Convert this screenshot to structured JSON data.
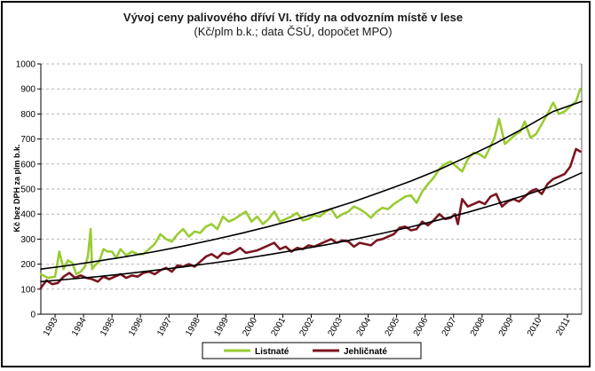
{
  "chart_data": {
    "type": "line",
    "title": "Vývoj ceny palivového dříví VI. třídy na odvozním místě v lese",
    "subtitle": "(Kč/plm b.k.; data ČSÚ, dopočet MPO)",
    "ylabel": "Kč bez DPH za plm b.k.",
    "xlabel": "",
    "ylim": [
      0,
      1000
    ],
    "xlim": [
      1992.5,
      2011.5
    ],
    "yticks": [
      "0",
      "100",
      "200",
      "300",
      "400",
      "500",
      "600",
      "700",
      "800",
      "900",
      "1000"
    ],
    "xticks": [
      "1993",
      "1994",
      "1995",
      "1996",
      "1997",
      "1998",
      "1999",
      "2000",
      "2001",
      "2002",
      "2003",
      "2004",
      "2005",
      "2006",
      "2007",
      "2008",
      "2009",
      "2010",
      "2011"
    ],
    "grid": "horizontal dashed",
    "legend": "bottom",
    "series": [
      {
        "name": "Listnaté",
        "color": "#99cc33",
        "x": [
          1992.5,
          1992.75,
          1993.0,
          1993.15,
          1993.3,
          1993.45,
          1993.6,
          1993.75,
          1993.9,
          1994.05,
          1994.15,
          1994.25,
          1994.3,
          1994.4,
          1994.55,
          1994.7,
          1994.85,
          1995.0,
          1995.15,
          1995.3,
          1995.5,
          1995.7,
          1995.9,
          1996.1,
          1996.3,
          1996.5,
          1996.7,
          1996.9,
          1997.1,
          1997.3,
          1997.5,
          1997.7,
          1997.9,
          1998.1,
          1998.3,
          1998.5,
          1998.7,
          1998.9,
          1999.1,
          1999.3,
          1999.5,
          1999.7,
          1999.9,
          2000.1,
          2000.3,
          2000.5,
          2000.7,
          2000.9,
          2001.1,
          2001.3,
          2001.5,
          2001.7,
          2001.9,
          2002.1,
          2002.3,
          2002.5,
          2002.7,
          2002.9,
          2003.1,
          2003.3,
          2003.5,
          2003.7,
          2003.9,
          2004.1,
          2004.3,
          2004.5,
          2004.7,
          2004.9,
          2005.1,
          2005.3,
          2005.5,
          2005.7,
          2005.9,
          2006.1,
          2006.3,
          2006.5,
          2006.7,
          2006.9,
          2007.1,
          2007.3,
          2007.5,
          2007.7,
          2007.9,
          2008.1,
          2008.3,
          2008.45,
          2008.6,
          2008.8,
          2009.0,
          2009.2,
          2009.35,
          2009.5,
          2009.7,
          2009.9,
          2010.1,
          2010.3,
          2010.5,
          2010.7,
          2010.9,
          2011.1,
          2011.3,
          2011.45
        ],
        "values": [
          160,
          145,
          150,
          250,
          180,
          215,
          205,
          160,
          170,
          190,
          230,
          340,
          180,
          195,
          210,
          260,
          250,
          250,
          225,
          260,
          235,
          250,
          240,
          240,
          260,
          280,
          320,
          300,
          290,
          320,
          340,
          310,
          330,
          325,
          350,
          360,
          340,
          390,
          370,
          380,
          395,
          410,
          370,
          390,
          360,
          380,
          410,
          370,
          380,
          390,
          405,
          375,
          380,
          395,
          390,
          410,
          420,
          385,
          400,
          410,
          430,
          420,
          405,
          385,
          410,
          425,
          420,
          440,
          455,
          470,
          475,
          445,
          490,
          520,
          545,
          580,
          600,
          610,
          590,
          570,
          620,
          645,
          640,
          625,
          670,
          710,
          780,
          680,
          700,
          720,
          730,
          770,
          705,
          720,
          760,
          800,
          845,
          800,
          810,
          830,
          850,
          900
        ]
      },
      {
        "name": "Jehličnaté",
        "color": "#7a1520",
        "x": [
          1992.5,
          1992.7,
          1992.9,
          1993.1,
          1993.3,
          1993.5,
          1993.7,
          1993.9,
          1994.1,
          1994.3,
          1994.5,
          1994.7,
          1994.9,
          1995.1,
          1995.3,
          1995.5,
          1995.7,
          1995.9,
          1996.1,
          1996.3,
          1996.5,
          1996.7,
          1996.9,
          1997.1,
          1997.3,
          1997.5,
          1997.7,
          1997.9,
          1998.1,
          1998.3,
          1998.5,
          1998.7,
          1998.9,
          1999.1,
          1999.3,
          1999.5,
          1999.7,
          1999.9,
          2000.1,
          2000.3,
          2000.5,
          2000.7,
          2000.9,
          2001.1,
          2001.3,
          2001.5,
          2001.7,
          2001.9,
          2002.1,
          2002.3,
          2002.5,
          2002.7,
          2002.9,
          2003.1,
          2003.3,
          2003.5,
          2003.7,
          2003.9,
          2004.1,
          2004.3,
          2004.5,
          2004.7,
          2004.9,
          2005.1,
          2005.3,
          2005.5,
          2005.7,
          2005.9,
          2006.1,
          2006.3,
          2006.5,
          2006.7,
          2006.9,
          2007.05,
          2007.15,
          2007.3,
          2007.5,
          2007.7,
          2007.9,
          2008.1,
          2008.3,
          2008.5,
          2008.7,
          2008.9,
          2009.1,
          2009.3,
          2009.5,
          2009.7,
          2009.9,
          2010.1,
          2010.3,
          2010.5,
          2010.7,
          2010.9,
          2011.1,
          2011.3,
          2011.45
        ],
        "values": [
          105,
          135,
          120,
          125,
          150,
          165,
          145,
          155,
          145,
          140,
          130,
          150,
          140,
          150,
          160,
          145,
          155,
          150,
          165,
          170,
          160,
          175,
          185,
          170,
          195,
          190,
          200,
          190,
          210,
          230,
          240,
          225,
          245,
          240,
          250,
          265,
          245,
          250,
          255,
          265,
          275,
          285,
          260,
          270,
          250,
          265,
          260,
          275,
          270,
          280,
          290,
          300,
          285,
          295,
          290,
          270,
          285,
          280,
          275,
          295,
          300,
          310,
          320,
          345,
          350,
          335,
          340,
          370,
          355,
          375,
          400,
          380,
          385,
          400,
          360,
          460,
          430,
          440,
          450,
          440,
          470,
          480,
          430,
          450,
          460,
          450,
          470,
          490,
          500,
          480,
          520,
          540,
          550,
          560,
          590,
          660,
          650
        ]
      },
      {
        "name": "trend-listnate",
        "color": "#000000",
        "x": [
          1992.5,
          1993.5,
          1994.5,
          1995.5,
          1996.5,
          1997.5,
          1998.5,
          1999.5,
          2000.5,
          2001.5,
          2002.5,
          2003.5,
          2004.5,
          2005.5,
          2006.5,
          2007.5,
          2008.5,
          2009.5,
          2010.5,
          2011.5
        ],
        "values": [
          180,
          195,
          212,
          230,
          250,
          272,
          296,
          322,
          350,
          380,
          414,
          450,
          490,
          532,
          578,
          630,
          684,
          745,
          810,
          850
        ]
      },
      {
        "name": "trend-jehlicnate",
        "color": "#000000",
        "x": [
          1992.5,
          1993.5,
          1994.5,
          1995.5,
          1996.5,
          1997.5,
          1998.5,
          1999.5,
          2000.5,
          2001.5,
          2002.5,
          2003.5,
          2004.5,
          2005.5,
          2006.5,
          2007.5,
          2008.5,
          2009.5,
          2010.5,
          2011.5
        ],
        "values": [
          130,
          140,
          150,
          162,
          175,
          189,
          204,
          220,
          238,
          257,
          277,
          299,
          323,
          349,
          377,
          407,
          440,
          475,
          513,
          565
        ]
      }
    ]
  }
}
